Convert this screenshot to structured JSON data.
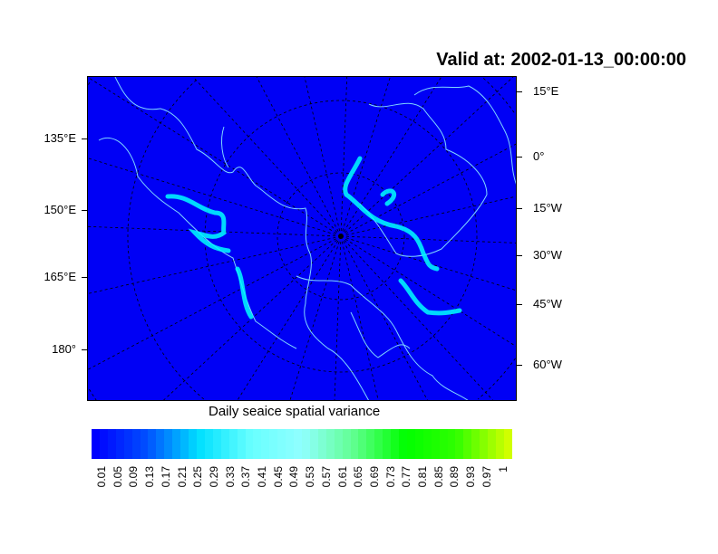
{
  "title": "Valid at: 2002-01-13_00:00:00",
  "map": {
    "projection": "polar stereographic (north)",
    "background_color": "#0000f5",
    "coastline_color": "#7fd6ff",
    "ice_edge_color": "#00ffff",
    "left_lon_labels": [
      "135°E",
      "150°E",
      "165°E",
      "180°"
    ],
    "right_lon_labels": [
      "15°E",
      "0°",
      "15°W",
      "30°W",
      "45°W",
      "60°W"
    ]
  },
  "colorbar": {
    "title": "Daily seaice spatial variance",
    "labels": [
      "0.01",
      "0.05",
      "0.09",
      "0.13",
      "0.17",
      "0.21",
      "0.25",
      "0.29",
      "0.33",
      "0.37",
      "0.41",
      "0.45",
      "0.49",
      "0.53",
      "0.57",
      "0.61",
      "0.65",
      "0.69",
      "0.73",
      "0.77",
      "0.81",
      "0.85",
      "0.89",
      "0.93",
      "0.97",
      "1"
    ],
    "anchor_colors": [
      "#0000ff",
      "#0050ff",
      "#00e0ff",
      "#66ffff",
      "#90ffff",
      "#60ff90",
      "#00ff00",
      "#30ff00",
      "#d0ff00"
    ]
  }
}
